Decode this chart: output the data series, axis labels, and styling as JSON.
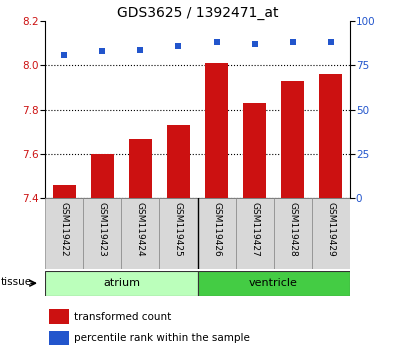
{
  "title": "GDS3625 / 1392471_at",
  "samples": [
    "GSM119422",
    "GSM119423",
    "GSM119424",
    "GSM119425",
    "GSM119426",
    "GSM119427",
    "GSM119428",
    "GSM119429"
  ],
  "bar_values": [
    7.46,
    7.6,
    7.67,
    7.73,
    8.01,
    7.83,
    7.93,
    7.96
  ],
  "dot_values": [
    81,
    83,
    84,
    86,
    88,
    87,
    88,
    88
  ],
  "bar_color": "#cc1111",
  "dot_color": "#2255cc",
  "ylim_left": [
    7.4,
    8.2
  ],
  "ylim_right": [
    0,
    100
  ],
  "yticks_left": [
    7.4,
    7.6,
    7.8,
    8.0,
    8.2
  ],
  "yticks_right": [
    0,
    25,
    50,
    75,
    100
  ],
  "tissue_groups": [
    {
      "label": "atrium",
      "indices": [
        0,
        1,
        2,
        3
      ],
      "color": "#bbffbb"
    },
    {
      "label": "ventricle",
      "indices": [
        4,
        5,
        6,
        7
      ],
      "color": "#44cc44"
    }
  ],
  "legend_bar_label": "transformed count",
  "legend_dot_label": "percentile rank within the sample",
  "tissue_label": "tissue",
  "background_color": "#ffffff",
  "plot_bg_color": "#ffffff",
  "grid_color": "#000000"
}
